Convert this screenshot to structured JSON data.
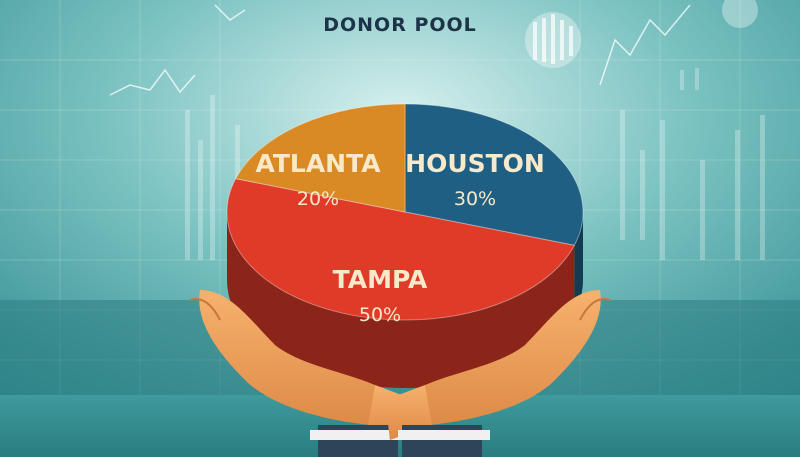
{
  "title": "DONOR POOL",
  "colors": {
    "background_light": "#bfe4e2",
    "background_dark": "#2d8a8e",
    "atlanta": "#d98a25",
    "houston": "#1f5f83",
    "tampa": "#e03a28",
    "label_light": "#f7e9c9",
    "label_dark": "#2a1a12",
    "hand": "#f0a55f",
    "sleeve": "#2d4556"
  },
  "chart_data": {
    "type": "pie",
    "title": "DONOR POOL",
    "slices": [
      {
        "label": "ATLANTA",
        "value": 20,
        "value_label": "20%",
        "color": "#d98a25"
      },
      {
        "label": "HOUSTON",
        "value": 30,
        "value_label": "30%",
        "color": "#1f5f83"
      },
      {
        "label": "TAMPA",
        "value": 50,
        "value_label": "50%",
        "color": "#e03a28"
      }
    ]
  }
}
